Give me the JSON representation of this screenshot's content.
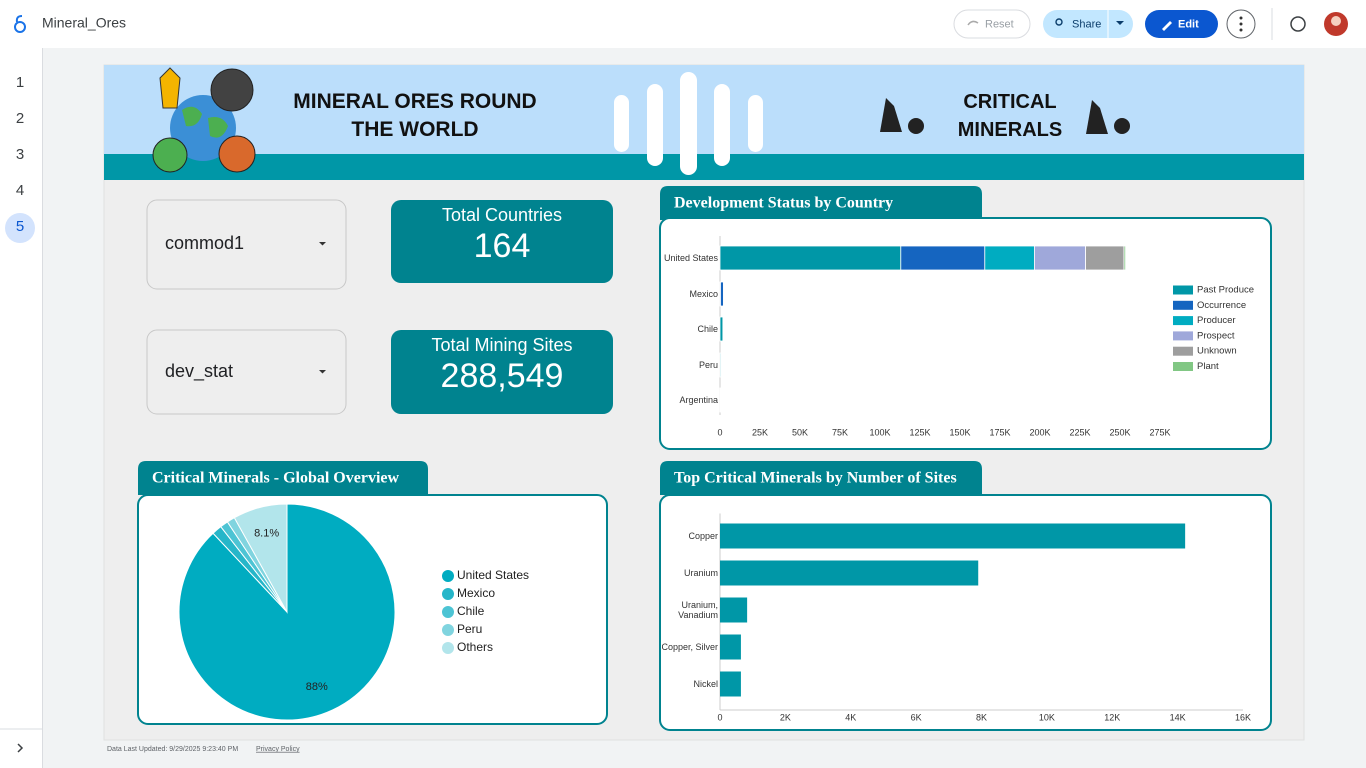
{
  "app": {
    "title": "Mineral_Ores",
    "buttons": {
      "reset": "Reset",
      "share": "Share",
      "edit": "Edit"
    }
  },
  "pages": [
    "1",
    "2",
    "3",
    "4",
    "5"
  ],
  "banner": {
    "title": "MINERAL ORES ROUND THE WORLD",
    "subtitle": "CRITICAL MINERALS"
  },
  "filters": [
    "commod1",
    "dev_stat"
  ],
  "scorecards": [
    {
      "label": "Total Countries",
      "value": "164"
    },
    {
      "label": "Total Mining Sites",
      "value": "288,549"
    }
  ],
  "chart_data": [
    {
      "type": "bar",
      "orientation": "horizontal",
      "stacked": true,
      "title": "Development Status by Country",
      "categories": [
        "United States",
        "Mexico",
        "Chile",
        "Peru",
        "Argentina"
      ],
      "series": [
        {
          "name": "Past Produce",
          "color": "#0097a7",
          "values": [
            113000,
            300,
            1800,
            600,
            400
          ]
        },
        {
          "name": "Occurrence",
          "color": "#1565c0",
          "values": [
            52500,
            1900,
            200,
            300,
            300
          ]
        },
        {
          "name": "Producer",
          "color": "#00acc1",
          "values": [
            31000,
            100,
            100,
            100,
            100
          ]
        },
        {
          "name": "Prospect",
          "color": "#9fa8da",
          "values": [
            32000,
            100,
            100,
            200,
            200
          ]
        },
        {
          "name": "Unknown",
          "color": "#9e9e9e",
          "values": [
            24000,
            100,
            100,
            100,
            100
          ]
        },
        {
          "name": "Plant",
          "color": "#81c784",
          "values": [
            1000,
            0,
            0,
            0,
            0
          ]
        }
      ],
      "xlim": [
        0,
        275000
      ],
      "xticks": [
        0,
        {
          "value": 25000,
          "label": "25K"
        },
        {
          "value": 50000,
          "label": "50K"
        },
        {
          "value": 75000,
          "label": "75K"
        },
        {
          "value": 100000,
          "label": "100K"
        },
        {
          "value": 125000,
          "label": "125K"
        },
        {
          "value": 150000,
          "label": "150K"
        },
        {
          "value": 175000,
          "label": "175K"
        },
        {
          "value": 200000,
          "label": "200K"
        },
        {
          "value": 225000,
          "label": "225K"
        },
        {
          "value": 250000,
          "label": "250K"
        },
        {
          "value": 275000,
          "label": "275K"
        }
      ],
      "legend": "right"
    },
    {
      "type": "pie",
      "title": "Critical Minerals - Global Overview",
      "categories": [
        "United States",
        "Mexico",
        "Chile",
        "Peru",
        "Others"
      ],
      "values": [
        88,
        1.5,
        1.2,
        1.2,
        8.1
      ],
      "value_labels": [
        "88%",
        null,
        null,
        null,
        "8.1%"
      ],
      "colors": [
        "#00acc1",
        "#26b6c9",
        "#4dc4d4",
        "#80d4df",
        "#b2e5eb"
      ],
      "legend": "right"
    },
    {
      "type": "bar",
      "orientation": "horizontal",
      "title": "Top Critical Minerals by Number of Sites",
      "categories": [
        "Copper",
        "Uranium",
        "Uranium, Vanadium",
        "Copper, Silver",
        "Nickel"
      ],
      "values": [
        14230,
        7900,
        830,
        640,
        640
      ],
      "color": "#0097a7",
      "xlim": [
        0,
        16000
      ],
      "xticks": [
        0,
        {
          "value": 2000,
          "label": "2K"
        },
        {
          "value": 4000,
          "label": "4K"
        },
        {
          "value": 6000,
          "label": "6K"
        },
        {
          "value": 8000,
          "label": "8K"
        },
        {
          "value": 10000,
          "label": "10K"
        },
        {
          "value": 12000,
          "label": "12K"
        },
        {
          "value": 14000,
          "label": "14K"
        },
        {
          "value": 16000,
          "label": "16K"
        }
      ]
    }
  ],
  "footer": {
    "updated": "Data Last Updated: 9/29/2025 9:23:40 PM",
    "privacy": "Privacy Policy"
  }
}
